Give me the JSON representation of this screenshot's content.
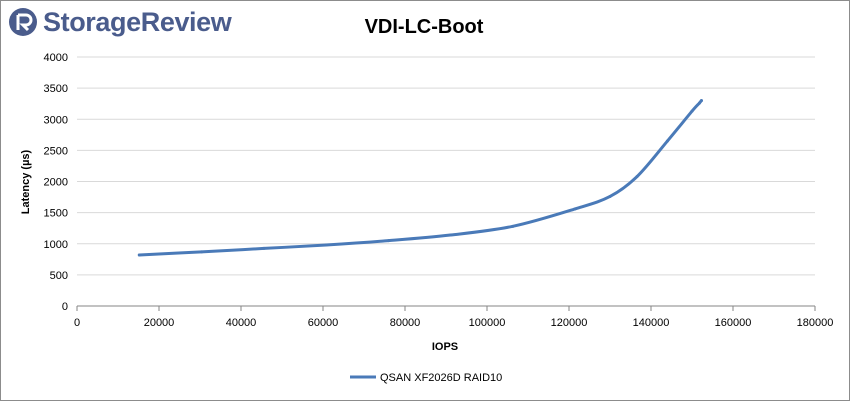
{
  "brand": {
    "name": "StorageReview",
    "color": "#4a5c8c",
    "icon": "storagereview-logo-icon"
  },
  "chart_data": {
    "type": "line",
    "title": "VDI-LC-Boot",
    "xlabel": "IOPS",
    "ylabel": "Latency (µs)",
    "xlim": [
      0,
      180000
    ],
    "ylim": [
      0,
      4000
    ],
    "xticks": [
      "0",
      "20000",
      "40000",
      "60000",
      "80000",
      "100000",
      "120000",
      "140000",
      "160000",
      "180000"
    ],
    "yticks": [
      "0",
      "500",
      "1000",
      "1500",
      "2000",
      "2500",
      "3000",
      "3500",
      "4000"
    ],
    "grid": true,
    "legend_position": "bottom",
    "series": [
      {
        "name": "QSAN XF2026D RAID10",
        "color": "#4a7ab8",
        "x": [
          15200,
          30400,
          45600,
          60800,
          76000,
          91100,
          106300,
          121500,
          130000,
          136600,
          144000,
          150000,
          151800,
          152300
        ],
        "y": [
          820,
          870,
          925,
          980,
          1050,
          1140,
          1280,
          1560,
          1760,
          2080,
          2650,
          3130,
          3260,
          3300
        ]
      }
    ]
  }
}
